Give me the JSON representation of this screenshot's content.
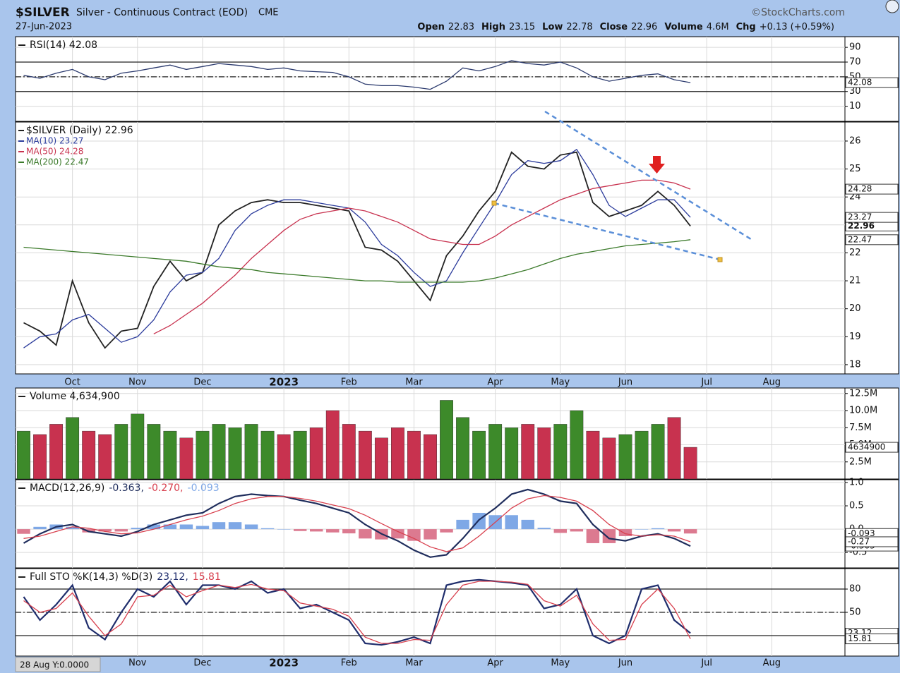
{
  "header": {
    "symbol": "$SILVER",
    "name": "Silver - Continuous Contract (EOD)",
    "exchange": "CME",
    "date": "27-Jun-2023",
    "source": "©StockCharts.com",
    "quote": [
      {
        "label": "Open",
        "value": "22.83"
      },
      {
        "label": "High",
        "value": "23.15"
      },
      {
        "label": "Low",
        "value": "22.78"
      },
      {
        "label": "Close",
        "value": "22.96"
      },
      {
        "label": "Volume",
        "value": "4.6M"
      },
      {
        "label": "Chg",
        "value": "+0.13 (+0.59%)"
      }
    ],
    "status": "28 Aug Y:0.0000"
  },
  "chart_data": [
    {
      "type": "line",
      "legend_layout": "inline",
      "ylim": [
        -10.5,
        104.5
      ],
      "yticks": [
        90,
        70,
        50,
        30,
        10
      ],
      "grid": true,
      "hlines": [
        {
          "value": 70,
          "style": "solid"
        },
        {
          "value": 50,
          "style": "dashdot"
        },
        {
          "value": 30,
          "style": "solid"
        }
      ],
      "series": [
        {
          "name": "RSI(14) 42.08",
          "color": "#2b3a6e",
          "values": [
            52,
            48,
            55,
            60,
            50,
            46,
            55,
            58,
            62,
            66,
            60,
            64,
            68,
            66,
            64,
            60,
            62,
            58,
            57,
            56,
            50,
            40,
            38,
            38,
            36,
            33,
            44,
            62,
            58,
            64,
            72,
            68,
            66,
            70,
            62,
            50,
            44,
            48,
            52,
            54,
            46,
            42.08,
            null,
            null,
            null,
            null,
            null,
            null,
            null,
            null,
            null
          ]
        }
      ]
    },
    {
      "type": "line",
      "legend_layout": "stacked",
      "ylim": [
        17.67,
        26.68
      ],
      "yticks": [
        18,
        19,
        20,
        21,
        22,
        23,
        24,
        25,
        26
      ],
      "grid": true,
      "categories": [
        null,
        null,
        null,
        "Oct",
        null,
        null,
        null,
        "Nov",
        null,
        null,
        null,
        "Dec",
        null,
        null,
        null,
        null,
        "2023",
        null,
        null,
        null,
        "Feb",
        null,
        null,
        null,
        "Mar",
        null,
        null,
        null,
        null,
        "Apr",
        null,
        null,
        null,
        "May",
        null,
        null,
        null,
        "Jun",
        null,
        null,
        null,
        null,
        "Jul",
        null,
        null,
        null,
        "Aug",
        null,
        null,
        null,
        null
      ],
      "series": [
        {
          "name": "$SILVER (Daily) 22.96",
          "color": "#222222",
          "emphasis": true,
          "values": [
            19.5,
            19.2,
            18.7,
            21.0,
            19.5,
            18.6,
            19.2,
            19.3,
            20.8,
            21.7,
            21.0,
            21.3,
            23.0,
            23.5,
            23.8,
            23.9,
            23.8,
            23.8,
            23.7,
            23.6,
            23.5,
            22.2,
            22.1,
            21.7,
            21.0,
            20.3,
            21.9,
            22.6,
            23.5,
            24.2,
            25.6,
            25.1,
            25.0,
            25.5,
            25.6,
            23.8,
            23.3,
            23.5,
            23.7,
            24.2,
            23.7,
            22.96,
            null,
            null,
            null,
            null,
            null,
            null,
            null,
            null,
            null
          ]
        },
        {
          "name": "MA(10) 23.27",
          "color": "#2c3c9c",
          "values": [
            18.6,
            19.0,
            19.1,
            19.6,
            19.8,
            19.3,
            18.8,
            19.0,
            19.6,
            20.6,
            21.2,
            21.3,
            21.8,
            22.8,
            23.4,
            23.7,
            23.9,
            23.9,
            23.8,
            23.7,
            23.6,
            23.1,
            22.3,
            21.9,
            21.3,
            20.8,
            21.0,
            22.0,
            22.9,
            23.8,
            24.8,
            25.3,
            25.2,
            25.3,
            25.7,
            24.8,
            23.7,
            23.3,
            23.6,
            23.9,
            23.9,
            23.27,
            null,
            null,
            null,
            null,
            null,
            null,
            null,
            null,
            null
          ]
        },
        {
          "name": "MA(50) 24.28",
          "color": "#c8324f",
          "values": [
            null,
            null,
            null,
            null,
            null,
            null,
            null,
            null,
            19.1,
            19.4,
            19.8,
            20.2,
            20.7,
            21.2,
            21.8,
            22.3,
            22.8,
            23.2,
            23.4,
            23.5,
            23.6,
            23.5,
            23.3,
            23.1,
            22.8,
            22.5,
            22.4,
            22.3,
            22.3,
            22.6,
            23.0,
            23.3,
            23.6,
            23.9,
            24.1,
            24.3,
            24.4,
            24.5,
            24.6,
            24.6,
            24.5,
            24.28,
            null,
            null,
            null,
            null,
            null,
            null,
            null,
            null,
            null
          ]
        },
        {
          "name": "MA(200) 22.47",
          "color": "#3b7a2a",
          "values": [
            22.2,
            22.15,
            22.1,
            22.05,
            22.0,
            21.95,
            21.9,
            21.85,
            21.8,
            21.75,
            21.7,
            21.6,
            21.5,
            21.45,
            21.4,
            21.3,
            21.25,
            21.2,
            21.15,
            21.1,
            21.05,
            21.0,
            21.0,
            20.95,
            20.95,
            20.95,
            20.95,
            20.95,
            21.0,
            21.1,
            21.25,
            21.4,
            21.6,
            21.8,
            21.95,
            22.05,
            22.15,
            22.25,
            22.3,
            22.35,
            22.4,
            22.47,
            null,
            null,
            null,
            null,
            null,
            null,
            null,
            null,
            null
          ]
        }
      ]
    },
    {
      "type": "bar",
      "legend_layout": "inline",
      "ylim": [
        0,
        13300000
      ],
      "grid": true,
      "yticks": [
        {
          "value": 2500000,
          "label": "2.5M"
        },
        {
          "value": 5000000,
          "label": "5.0M"
        },
        {
          "value": 7500000,
          "label": "7.5M"
        },
        {
          "value": 10000000,
          "label": "10.0M"
        },
        {
          "value": 12500000,
          "label": "12.5M"
        }
      ],
      "up_color": "#3d8a2a",
      "down_color": "#c8324f",
      "series": [
        {
          "name": "Volume 4,634,900",
          "values": [
            7000000,
            6500000,
            8000000,
            9000000,
            7000000,
            6500000,
            8000000,
            9500000,
            8000000,
            7000000,
            6000000,
            7000000,
            8000000,
            7500000,
            8000000,
            7000000,
            6500000,
            7000000,
            7500000,
            10000000,
            8000000,
            7000000,
            6000000,
            7500000,
            7000000,
            6500000,
            11500000,
            9000000,
            7000000,
            8000000,
            7500000,
            8000000,
            7500000,
            8000000,
            10000000,
            7000000,
            6000000,
            6500000,
            7000000,
            8000000,
            9000000,
            4634900,
            null,
            null,
            null,
            null,
            null,
            null,
            null,
            null,
            null
          ]
        }
      ]
    },
    {
      "type": "line",
      "legend_layout": "inline",
      "title": "MACD(12,26,9)",
      "ylim": [
        -0.83,
        1.06
      ],
      "grid": true,
      "yticks": [
        {
          "value": 1,
          "label": "1.0"
        },
        0.5,
        {
          "value": 0,
          "label": "0.0"
        },
        -0.5
      ],
      "series": [
        {
          "name": "-0.093",
          "type": "bar",
          "color": "#7fa8e6",
          "negative_color": "#dc7a90",
          "values": [
            -0.1,
            0.05,
            0.1,
            0.05,
            -0.07,
            -0.05,
            -0.05,
            0.03,
            0.1,
            0.1,
            0.1,
            0.07,
            0.15,
            0.15,
            0.1,
            0.02,
            0,
            -0.04,
            -0.05,
            -0.07,
            -0.09,
            -0.2,
            -0.22,
            -0.2,
            -0.25,
            -0.22,
            -0.07,
            0.2,
            0.35,
            0.3,
            0.3,
            0.2,
            0.03,
            -0.08,
            -0.05,
            -0.3,
            -0.3,
            -0.15,
            0,
            0.02,
            -0.05,
            -0.093,
            null,
            null,
            null,
            null,
            null,
            null,
            null,
            null,
            null
          ]
        },
        {
          "name": "-0.363,",
          "color": "#1f2d5c",
          "values": [
            -0.3,
            -0.1,
            0.05,
            0.1,
            -0.05,
            -0.1,
            -0.15,
            -0.05,
            0.1,
            0.2,
            0.3,
            0.35,
            0.55,
            0.7,
            0.75,
            0.72,
            0.7,
            0.62,
            0.55,
            0.45,
            0.35,
            0.1,
            -0.1,
            -0.25,
            -0.45,
            -0.6,
            -0.55,
            -0.2,
            0.2,
            0.45,
            0.75,
            0.85,
            0.75,
            0.6,
            0.55,
            0.1,
            -0.2,
            -0.25,
            -0.15,
            -0.1,
            -0.2,
            -0.363,
            null,
            null,
            null,
            null,
            null,
            null,
            null,
            null,
            null
          ]
        },
        {
          "name": "-0.270,",
          "color": "#d8404e",
          "values": [
            -0.2,
            -0.15,
            -0.05,
            0.05,
            0.02,
            -0.05,
            -0.1,
            -0.08,
            0.0,
            0.1,
            0.2,
            0.28,
            0.4,
            0.55,
            0.65,
            0.7,
            0.7,
            0.66,
            0.6,
            0.52,
            0.44,
            0.3,
            0.12,
            -0.05,
            -0.2,
            -0.38,
            -0.48,
            -0.4,
            -0.15,
            0.15,
            0.45,
            0.65,
            0.72,
            0.68,
            0.6,
            0.4,
            0.1,
            -0.1,
            -0.15,
            -0.12,
            -0.15,
            -0.27,
            null,
            null,
            null,
            null,
            null,
            null,
            null,
            null,
            null
          ]
        }
      ],
      "legend_order": [
        1,
        2,
        0
      ]
    },
    {
      "type": "line",
      "legend_layout": "inline",
      "title": "Full STO %K(14,3) %D(3)",
      "ylim": [
        -6.4,
        106.4
      ],
      "yticks": [
        80,
        50
      ],
      "grid": true,
      "hlines": [
        {
          "value": 80,
          "style": "solid"
        },
        {
          "value": 50,
          "style": "dashdot"
        },
        {
          "value": 20,
          "style": "solid"
        }
      ],
      "series": [
        {
          "name": "23.12,",
          "color": "#1f2d6c",
          "values": [
            70,
            40,
            60,
            85,
            30,
            15,
            50,
            80,
            70,
            90,
            60,
            85,
            85,
            80,
            90,
            75,
            80,
            55,
            60,
            50,
            40,
            10,
            8,
            12,
            18,
            10,
            85,
            90,
            92,
            90,
            88,
            85,
            55,
            60,
            80,
            20,
            10,
            20,
            80,
            85,
            40,
            23.12,
            null,
            null,
            null,
            null,
            null,
            null,
            null,
            null,
            null
          ]
        },
        {
          "name": "15.81",
          "color": "#d8404e",
          "values": [
            65,
            50,
            55,
            75,
            45,
            20,
            35,
            70,
            72,
            85,
            70,
            78,
            85,
            82,
            86,
            80,
            78,
            62,
            58,
            54,
            45,
            18,
            10,
            10,
            15,
            14,
            60,
            85,
            90,
            90,
            89,
            86,
            65,
            58,
            72,
            35,
            14,
            15,
            60,
            80,
            55,
            15.81,
            null,
            null,
            null,
            null,
            null,
            null,
            null,
            null,
            null
          ]
        }
      ]
    }
  ]
}
